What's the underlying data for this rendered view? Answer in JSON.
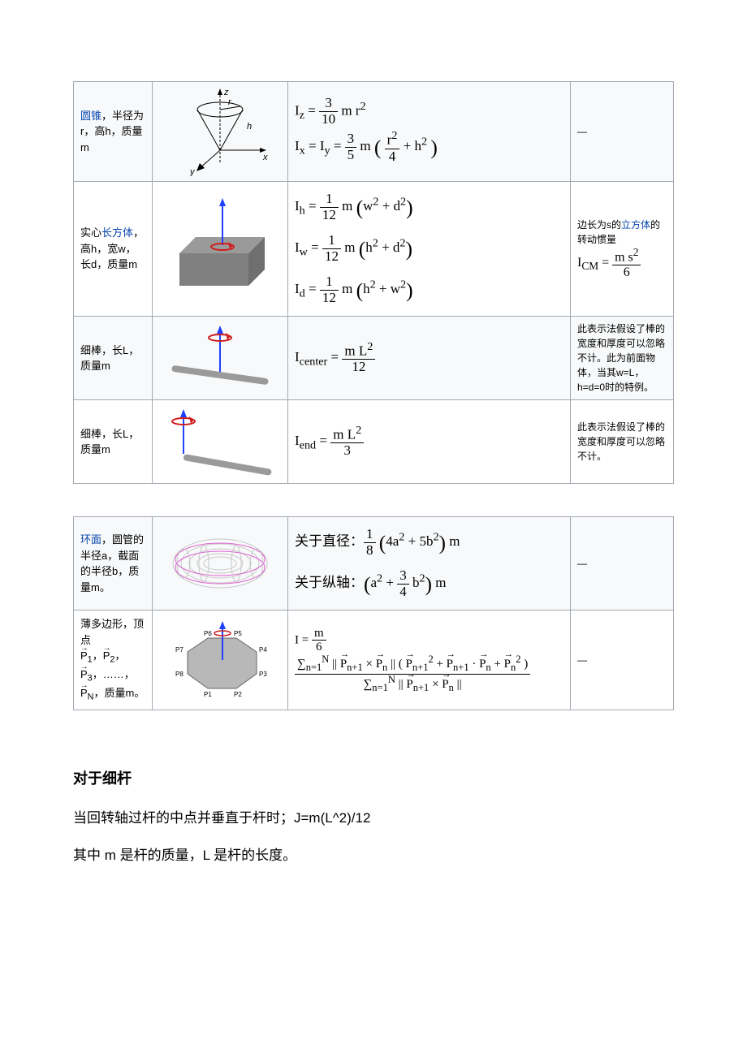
{
  "table1": [
    {
      "desc_link": "圆锥",
      "desc_rest": "，半径为r，高h，质量m",
      "formula_html": "I<sub>z</sub> = <span class='frac'><span class='num'>3</span><span class='den'>10</span></span> m r<sup>2</sup><br>I<sub>x</sub> = I<sub>y</sub> = <span class='frac'><span class='num'>3</span><span class='den'>5</span></span> m <span class='big-paren'>(</span> <span class='frac'><span class='num'>r<sup>2</sup></span><span class='den'>4</span></span> + h<sup>2</sup> <span class='big-paren'>)</span>",
      "note_html": "—",
      "svg": "cone",
      "alt": false
    },
    {
      "desc_pre": "实心",
      "desc_link": "长方体",
      "desc_rest": "，高h，宽w，长d，质量m",
      "formula_html": "I<sub>h</sub> = <span class='frac'><span class='num'>1</span><span class='den'>12</span></span> m <span class='big-paren'>(</span>w<sup>2</sup> + d<sup>2</sup><span class='big-paren'>)</span><br>I<sub>w</sub> = <span class='frac'><span class='num'>1</span><span class='den'>12</span></span> m <span class='big-paren'>(</span>h<sup>2</sup> + d<sup>2</sup><span class='big-paren'>)</span><br>I<sub>d</sub> = <span class='frac'><span class='num'>1</span><span class='den'>12</span></span> m <span class='big-paren'>(</span>h<sup>2</sup> + w<sup>2</sup><span class='big-paren'>)</span>",
      "note_html": "边长为s的<a class='link'>立方体</a>的转动惯量<br><span style='font-family:Cambria Math,serif;font-size:16px'>I<sub>CM</sub> = <span class='frac'><span class='num'>m s<sup>2</sup></span><span class='den'>6</span></span></span>",
      "svg": "cuboid",
      "alt": true
    },
    {
      "desc_plain": "细棒，长L，质量m",
      "formula_html": "I<sub>center</sub> = <span class='frac'><span class='num'>m L<sup>2</sup></span><span class='den'>12</span></span>",
      "note_html": "此表示法假设了棒的宽度和厚度可以忽略不计。此为前面物体，当其w=L，h=d=0时的特例。",
      "svg": "rod_center",
      "alt": false
    },
    {
      "desc_plain": "细棒，长L，质量m",
      "formula_html": "I<sub>end</sub> = <span class='frac'><span class='num'>m L<sup>2</sup></span><span class='den'>3</span></span>",
      "note_html": "此表示法假设了棒的宽度和厚度可以忽略不计。",
      "svg": "rod_end",
      "alt": true
    }
  ],
  "table2": [
    {
      "desc_link": "环面",
      "desc_rest": "，圆管的半径a，截面的半径b，质量m。",
      "formula_html": "关于直径：<span class='frac'><span class='num'>1</span><span class='den'>8</span></span> <span class='big-paren'>(</span>4a<sup>2</sup> + 5b<sup>2</sup><span class='big-paren'>)</span> m<br>关于纵轴：<span class='big-paren'>(</span>a<sup>2</sup> + <span class='frac'><span class='num'>3</span><span class='den'>4</span></span> b<sup>2</sup><span class='big-paren'>)</span> m",
      "note_html": "—",
      "svg": "torus",
      "alt": false
    },
    {
      "desc_html": "薄多边形，顶点<br><span class='vec'>P</span><sub>1</sub>，<span class='vec'>P</span><sub>2</sub>，<span class='vec'>P</span><sub>3</sub>，……，<span class='vec'>P</span><sub>N</sub>，质量m。",
      "formula_html": "I = <span class='frac'><span class='num'>m</span><span class='den'>6</span></span> &nbsp;<span class='frac'><span class='num'>&sum;<sub>n=1</sub><sup>N</sup> || <span class='vec'>P</span><sub>n+1</sub> &times; <span class='vec'>P</span><sub>n</sub> || ( <span class='vec'>P</span><sub>n+1</sub><sup>2</sup> + <span class='vec'>P</span><sub>n+1</sub> &middot; <span class='vec'>P</span><sub>n</sub> + <span class='vec'>P</span><sub>n</sub><sup>2</sup> )</span><span class='den'>&sum;<sub>n=1</sub><sup>N</sup> || <span class='vec'>P</span><sub>n+1</sub> &times; <span class='vec'>P</span><sub>n</sub> ||</span></span>",
      "note_html": "—",
      "svg": "polygon",
      "alt": true
    }
  ],
  "section": {
    "title": "对于细杆",
    "line1": "当回转轴过杆的中点并垂直于杆时；J=m(L^2)/12",
    "line2": "其中 m 是杆的质量，L 是杆的长度。"
  },
  "colors": {
    "link": "#0645ad",
    "border": "#a2a9b1",
    "row_bg": "#f8f9fa",
    "arrow_blue": "#2040ff",
    "arrow_red": "#d01c1c",
    "solid_gray": "#808080",
    "wire_pink": "#e060d0"
  }
}
